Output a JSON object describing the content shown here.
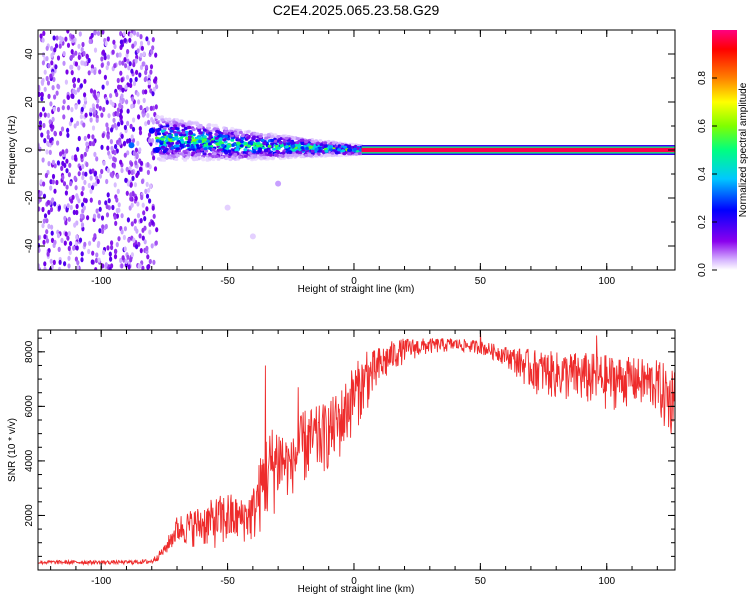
{
  "title": "C2E4.2025.065.23.58.G29",
  "chart_data": [
    {
      "type": "heatmap",
      "xlabel": "Height of straight line (km)",
      "ylabel": "Frequency (Hz)",
      "xlim": [
        -125,
        127
      ],
      "ylim": [
        -50,
        50
      ],
      "xticks": [
        -100,
        -50,
        0,
        50,
        100
      ],
      "yticks": [
        -40,
        -20,
        0,
        20,
        40
      ],
      "colorbar": {
        "label": "Normalized spectral amplitude",
        "range": [
          0,
          1
        ],
        "ticks": [
          "0.0",
          "0.2",
          "0.4",
          "0.6",
          "0.8"
        ],
        "colors": [
          "#ffffff",
          "#c8a0ff",
          "#7a00e6",
          "#0000ff",
          "#00c8ff",
          "#00ff80",
          "#80ff00",
          "#ffff00",
          "#ff8000",
          "#ff0000",
          "#ff0080"
        ]
      },
      "regions": [
        {
          "x": [
            -125,
            -78
          ],
          "freq_range": [
            -50,
            50
          ],
          "amplitude": 0.15,
          "description": "broadband noise"
        },
        {
          "x": [
            -78,
            3
          ],
          "freq_center": [
            5,
            4,
            3,
            2,
            1.5,
            1,
            0.5,
            0
          ],
          "amplitude_peak": 0.5
        },
        {
          "x": [
            3,
            127
          ],
          "freq_center": 0,
          "amplitude_peak": 1.0
        }
      ]
    },
    {
      "type": "line",
      "xlabel": "Height of straight line (km)",
      "ylabel": "SNR (10 * v/v)",
      "xlim": [
        -125,
        127
      ],
      "ylim": [
        0,
        8800
      ],
      "xticks": [
        -100,
        -50,
        0,
        50,
        100
      ],
      "yticks": [
        2000,
        4000,
        6000,
        8000
      ],
      "color": "#ee2b2b",
      "envelope": {
        "x": [
          -125,
          -90,
          -80,
          -75,
          -70,
          -60,
          -50,
          -45,
          -40,
          -35,
          -30,
          -25,
          -20,
          -15,
          -10,
          -5,
          0,
          5,
          10,
          15,
          20,
          30,
          40,
          50,
          60,
          70,
          80,
          90,
          100,
          110,
          120,
          125,
          127
        ],
        "lower": [
          200,
          200,
          200,
          500,
          900,
          800,
          700,
          1000,
          900,
          1500,
          2200,
          2700,
          3000,
          3300,
          3600,
          4000,
          5000,
          5800,
          6500,
          7200,
          7600,
          7900,
          8000,
          7900,
          7500,
          6500,
          6200,
          6000,
          5800,
          6000,
          5700,
          4500,
          5800
        ],
        "upper": [
          350,
          350,
          400,
          900,
          2000,
          2400,
          2900,
          2600,
          3000,
          5000,
          5600,
          4700,
          5900,
          6000,
          6200,
          6700,
          7600,
          7900,
          8200,
          8400,
          8500,
          8500,
          8500,
          8400,
          8200,
          8100,
          8000,
          8000,
          7900,
          7800,
          7700,
          7500,
          7600
        ]
      },
      "spikes": [
        {
          "x": -35,
          "y": 7500
        },
        {
          "x": -22,
          "y": 6700
        },
        {
          "x": 5,
          "y": 8000
        },
        {
          "x": 50,
          "y": 8800
        },
        {
          "x": 96,
          "y": 8600
        }
      ]
    }
  ]
}
